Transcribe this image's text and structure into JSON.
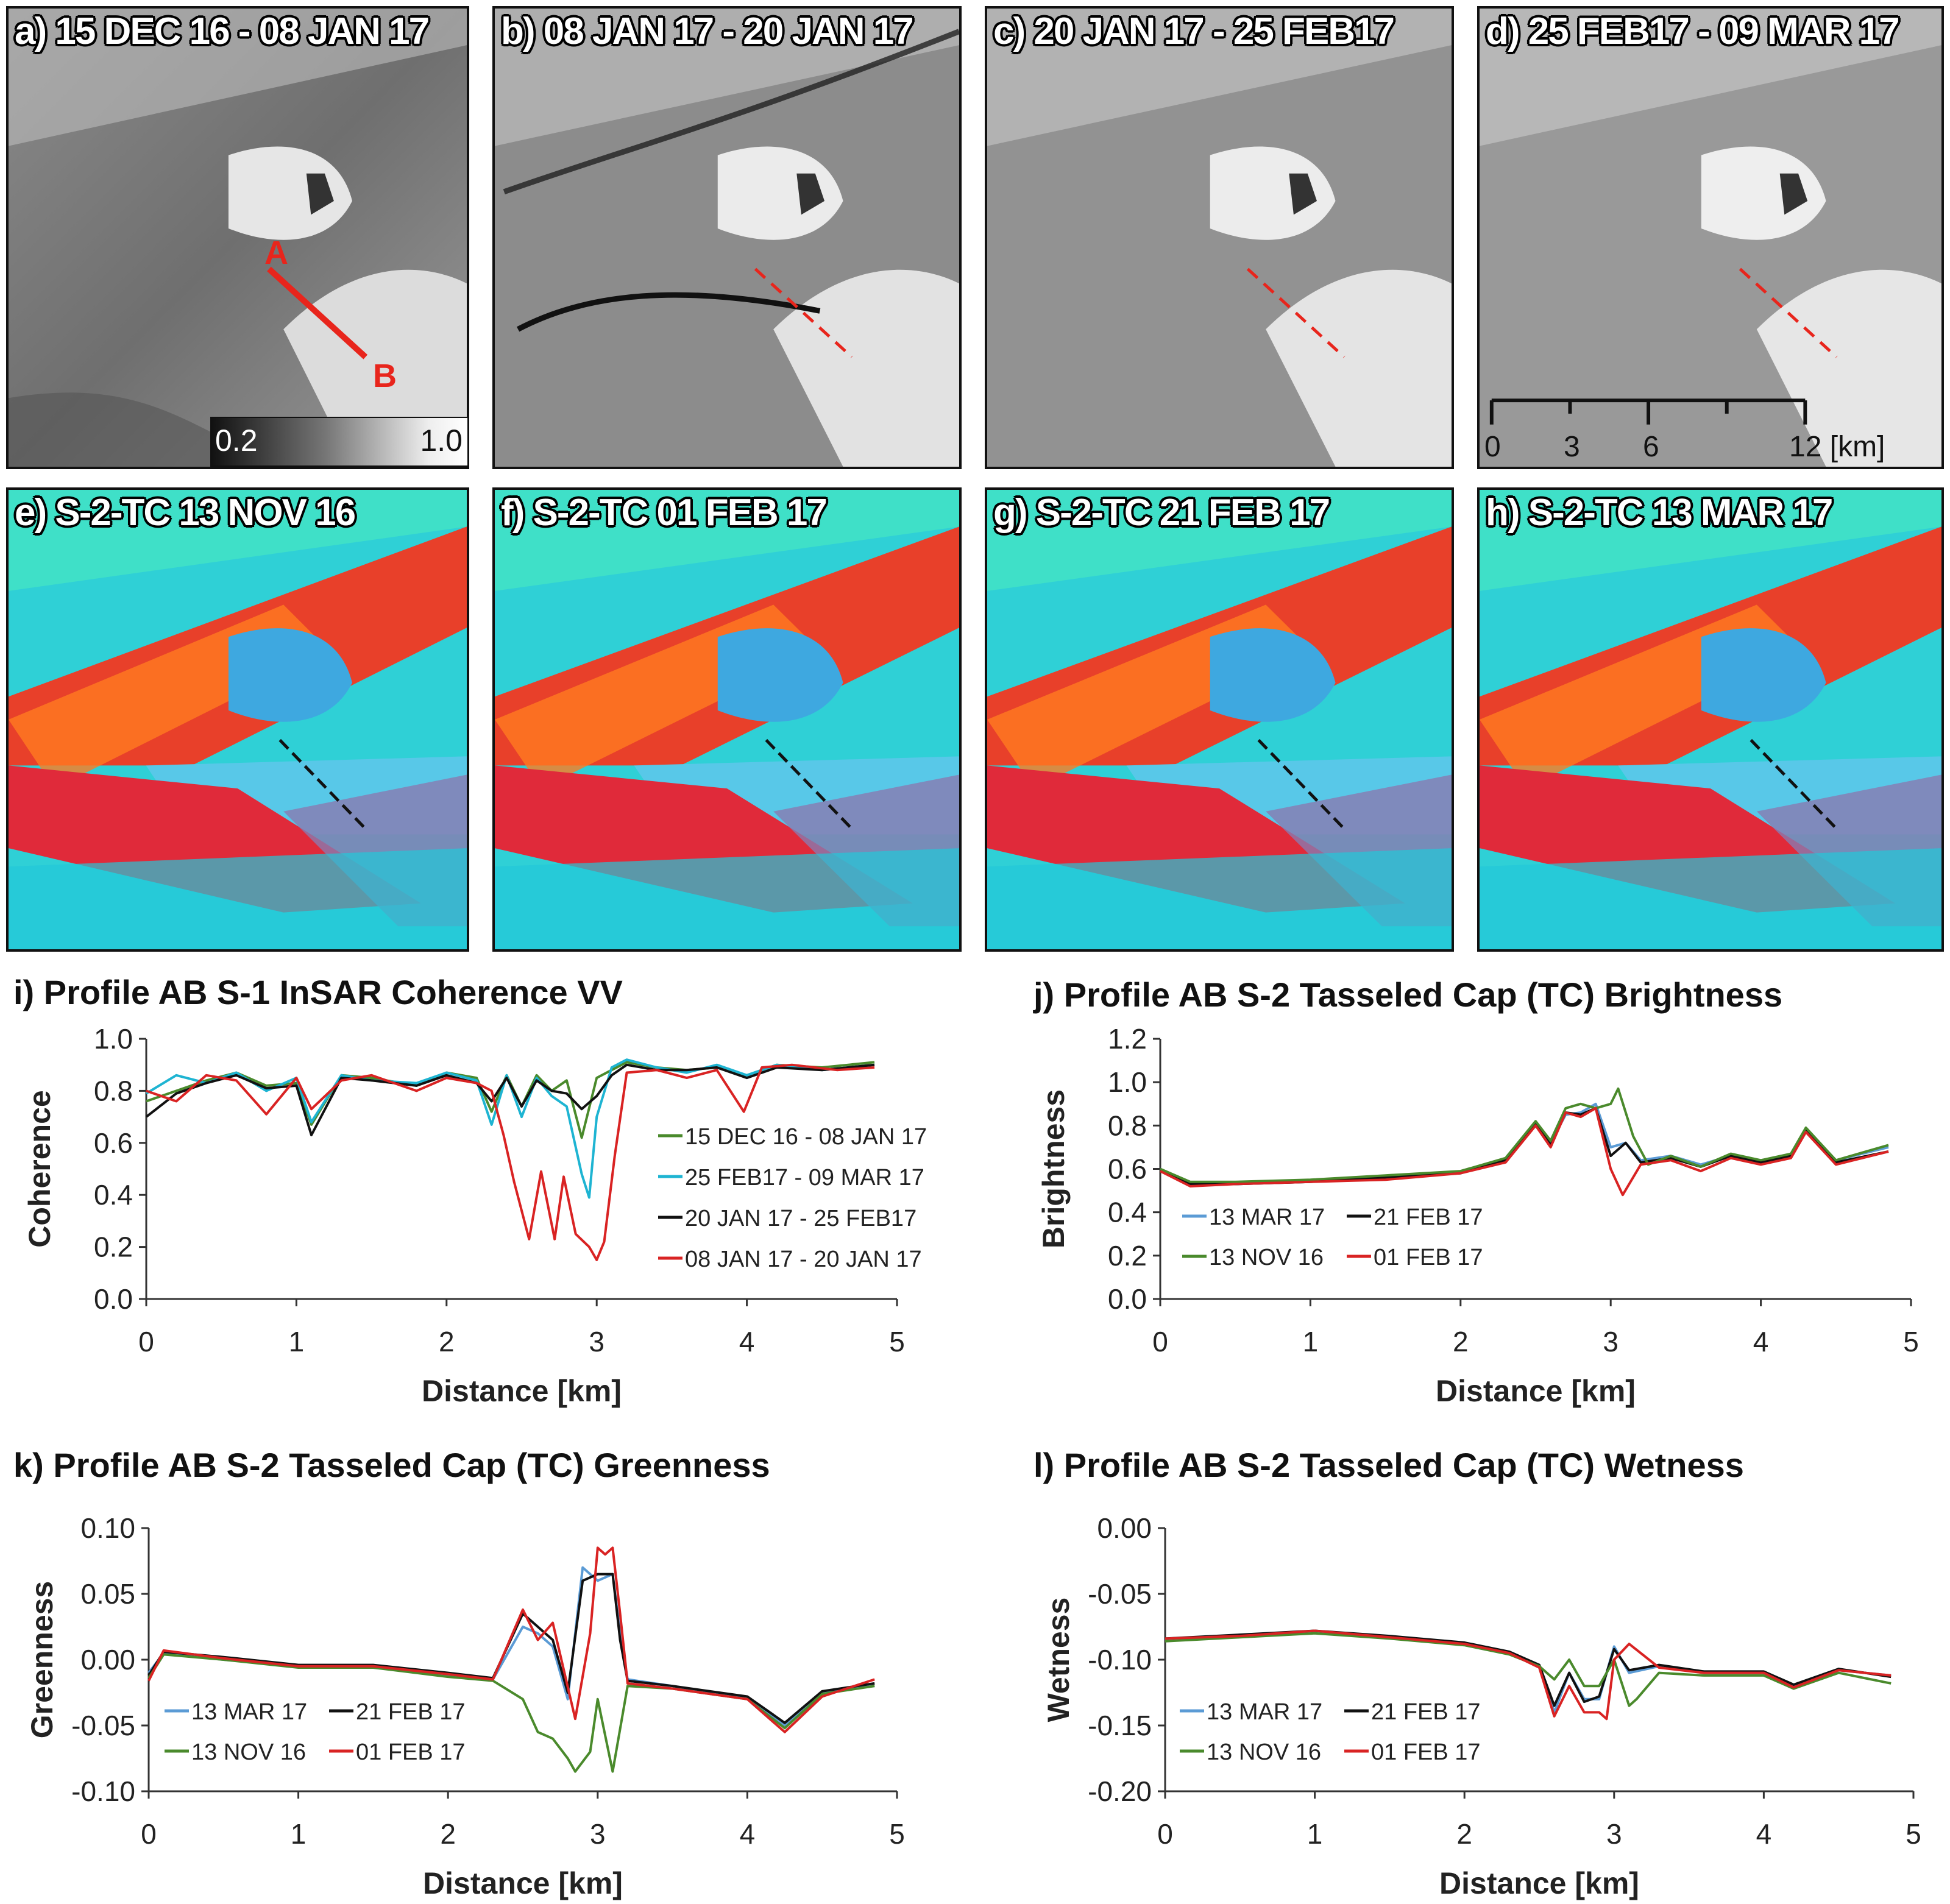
{
  "panels": {
    "a": {
      "label": "a) 15 DEC 16 - 08 JAN 17"
    },
    "b": {
      "label": "b) 08 JAN 17 - 20 JAN 17"
    },
    "c": {
      "label": "c) 20 JAN 17 - 25 FEB17"
    },
    "d": {
      "label": "d) 25 FEB17 - 09 MAR 17"
    },
    "e": {
      "label": "e) S-2-TC 13 NOV 16"
    },
    "f": {
      "label": "f) S-2-TC 01 FEB 17"
    },
    "g": {
      "label": "g) S-2-TC 21 FEB 17"
    },
    "h": {
      "label": "h) S-2-TC 13 MAR 17"
    }
  },
  "profile_points": {
    "start": "A",
    "end": "B"
  },
  "colorbar": {
    "min": "0.2",
    "max": "1.0"
  },
  "scale_bar": {
    "ticks": [
      "0",
      "3",
      "6",
      "12 [km]"
    ]
  },
  "colors": {
    "green": "#4a8a2c",
    "cyan": "#1eb4d2",
    "black": "#111111",
    "red": "#d92323",
    "blue": "#5b9bd5",
    "profile": "#e8251c"
  },
  "chart_data": [
    {
      "id": "i",
      "type": "line",
      "title": "i) Profile AB S-1 InSAR Coherence VV",
      "xlabel": "Distance [km]",
      "ylabel": "Coherence",
      "xlim": [
        0,
        5
      ],
      "ylim": [
        0,
        1.0
      ],
      "xticks": [
        0,
        1,
        2,
        3,
        4,
        5
      ],
      "yticks": [
        0.0,
        0.2,
        0.4,
        0.6,
        0.8,
        1.0
      ],
      "ytick_labels": [
        "0.0",
        "0.2",
        "0.4",
        "0.6",
        "0.8",
        "1.0"
      ],
      "legend_position": "center-right",
      "series": [
        {
          "name": "15 DEC 16 - 08 JAN 17",
          "color": "#4a8a2c",
          "x": [
            0,
            0.2,
            0.4,
            0.6,
            0.8,
            1.0,
            1.1,
            1.3,
            1.5,
            1.8,
            2.0,
            2.2,
            2.3,
            2.4,
            2.5,
            2.6,
            2.7,
            2.8,
            2.9,
            3.0,
            3.1,
            3.2,
            3.4,
            3.6,
            3.8,
            4.0,
            4.2,
            4.5,
            4.85
          ],
          "y": [
            0.76,
            0.8,
            0.84,
            0.87,
            0.82,
            0.83,
            0.67,
            0.86,
            0.85,
            0.82,
            0.87,
            0.85,
            0.72,
            0.86,
            0.74,
            0.86,
            0.8,
            0.84,
            0.62,
            0.85,
            0.88,
            0.91,
            0.89,
            0.88,
            0.89,
            0.86,
            0.9,
            0.89,
            0.91
          ]
        },
        {
          "name": "25 FEB17 - 09 MAR 17",
          "color": "#1eb4d2",
          "x": [
            0,
            0.2,
            0.4,
            0.6,
            0.8,
            1.0,
            1.1,
            1.3,
            1.5,
            1.8,
            2.0,
            2.2,
            2.3,
            2.4,
            2.5,
            2.6,
            2.7,
            2.8,
            2.9,
            2.95,
            3.0,
            3.1,
            3.2,
            3.4,
            3.6,
            3.8,
            4.0,
            4.2,
            4.5,
            4.85
          ],
          "y": [
            0.79,
            0.86,
            0.83,
            0.87,
            0.8,
            0.85,
            0.68,
            0.86,
            0.84,
            0.83,
            0.87,
            0.84,
            0.67,
            0.86,
            0.7,
            0.85,
            0.78,
            0.74,
            0.48,
            0.39,
            0.7,
            0.89,
            0.92,
            0.89,
            0.87,
            0.9,
            0.86,
            0.9,
            0.88,
            0.9
          ]
        },
        {
          "name": "20 JAN 17 - 25 FEB17",
          "color": "#111111",
          "x": [
            0,
            0.2,
            0.4,
            0.6,
            0.8,
            1.0,
            1.1,
            1.3,
            1.5,
            1.8,
            2.0,
            2.2,
            2.3,
            2.4,
            2.5,
            2.6,
            2.7,
            2.8,
            2.9,
            3.0,
            3.1,
            3.2,
            3.4,
            3.6,
            3.8,
            4.0,
            4.2,
            4.5,
            4.85
          ],
          "y": [
            0.7,
            0.79,
            0.83,
            0.86,
            0.81,
            0.82,
            0.63,
            0.85,
            0.84,
            0.82,
            0.86,
            0.83,
            0.76,
            0.85,
            0.74,
            0.84,
            0.8,
            0.79,
            0.73,
            0.78,
            0.86,
            0.9,
            0.88,
            0.88,
            0.89,
            0.85,
            0.89,
            0.88,
            0.9
          ]
        },
        {
          "name": "08 JAN 17 - 20 JAN 17",
          "color": "#d92323",
          "x": [
            0,
            0.2,
            0.4,
            0.6,
            0.8,
            1.0,
            1.1,
            1.3,
            1.5,
            1.8,
            2.0,
            2.2,
            2.3,
            2.38,
            2.45,
            2.55,
            2.63,
            2.72,
            2.78,
            2.86,
            2.95,
            3.0,
            3.05,
            3.12,
            3.2,
            3.4,
            3.6,
            3.8,
            3.98,
            4.1,
            4.3,
            4.6,
            4.85
          ],
          "y": [
            0.8,
            0.76,
            0.86,
            0.84,
            0.71,
            0.85,
            0.73,
            0.84,
            0.86,
            0.8,
            0.85,
            0.83,
            0.8,
            0.63,
            0.45,
            0.23,
            0.49,
            0.23,
            0.47,
            0.25,
            0.2,
            0.15,
            0.22,
            0.55,
            0.87,
            0.88,
            0.85,
            0.88,
            0.72,
            0.89,
            0.9,
            0.88,
            0.89
          ]
        }
      ]
    },
    {
      "id": "j",
      "type": "line",
      "title": "j) Profile AB S-2 Tasseled Cap (TC) Brightness",
      "xlabel": "Distance [km]",
      "ylabel": "Brightness",
      "xlim": [
        0,
        5
      ],
      "ylim": [
        0,
        1.2
      ],
      "xticks": [
        0,
        1,
        2,
        3,
        4,
        5
      ],
      "yticks": [
        0.0,
        0.2,
        0.4,
        0.6,
        0.8,
        1.0,
        1.2
      ],
      "ytick_labels": [
        "0.0",
        "0.2",
        "0.4",
        "0.6",
        "0.8",
        "1.0",
        "1.2"
      ],
      "legend_position": "bottom-left",
      "series": [
        {
          "name": "13 MAR 17",
          "color": "#5b9bd5",
          "x": [
            0,
            0.2,
            0.5,
            1.0,
            1.5,
            2.0,
            2.3,
            2.5,
            2.6,
            2.7,
            2.8,
            2.9,
            3.0,
            3.1,
            3.2,
            3.4,
            3.6,
            3.8,
            4.0,
            4.2,
            4.3,
            4.5,
            4.85
          ],
          "y": [
            0.6,
            0.53,
            0.53,
            0.54,
            0.56,
            0.58,
            0.64,
            0.8,
            0.72,
            0.85,
            0.86,
            0.9,
            0.7,
            0.72,
            0.64,
            0.66,
            0.62,
            0.66,
            0.64,
            0.66,
            0.78,
            0.64,
            0.7
          ]
        },
        {
          "name": "21 FEB 17",
          "color": "#111111",
          "x": [
            0,
            0.2,
            0.5,
            1.0,
            1.5,
            2.0,
            2.3,
            2.5,
            2.6,
            2.7,
            2.8,
            2.9,
            3.0,
            3.1,
            3.2,
            3.4,
            3.6,
            3.8,
            4.0,
            4.2,
            4.3,
            4.5,
            4.85
          ],
          "y": [
            0.59,
            0.53,
            0.53,
            0.54,
            0.56,
            0.58,
            0.64,
            0.81,
            0.71,
            0.86,
            0.85,
            0.88,
            0.66,
            0.72,
            0.63,
            0.65,
            0.61,
            0.66,
            0.63,
            0.66,
            0.78,
            0.63,
            0.68
          ]
        },
        {
          "name": "13 NOV 16",
          "color": "#4a8a2c",
          "x": [
            0,
            0.2,
            0.5,
            1.0,
            1.5,
            2.0,
            2.3,
            2.5,
            2.6,
            2.7,
            2.8,
            2.9,
            3.0,
            3.05,
            3.15,
            3.25,
            3.4,
            3.6,
            3.8,
            4.0,
            4.2,
            4.3,
            4.5,
            4.85
          ],
          "y": [
            0.6,
            0.54,
            0.54,
            0.55,
            0.57,
            0.59,
            0.65,
            0.82,
            0.73,
            0.88,
            0.9,
            0.88,
            0.9,
            0.97,
            0.75,
            0.62,
            0.66,
            0.61,
            0.67,
            0.64,
            0.67,
            0.79,
            0.64,
            0.71
          ]
        },
        {
          "name": "01 FEB 17",
          "color": "#d92323",
          "x": [
            0,
            0.2,
            0.5,
            1.0,
            1.5,
            2.0,
            2.3,
            2.5,
            2.6,
            2.7,
            2.8,
            2.9,
            3.0,
            3.08,
            3.2,
            3.4,
            3.6,
            3.8,
            4.0,
            4.2,
            4.3,
            4.5,
            4.85
          ],
          "y": [
            0.59,
            0.52,
            0.53,
            0.54,
            0.55,
            0.58,
            0.63,
            0.8,
            0.7,
            0.86,
            0.84,
            0.88,
            0.6,
            0.48,
            0.62,
            0.64,
            0.59,
            0.65,
            0.62,
            0.65,
            0.77,
            0.62,
            0.68
          ]
        }
      ]
    },
    {
      "id": "k",
      "type": "line",
      "title": "k) Profile AB S-2 Tasseled Cap (TC) Greenness",
      "xlabel": "Distance [km]",
      "ylabel": "Greenness",
      "xlim": [
        0,
        5
      ],
      "ylim": [
        -0.1,
        0.1
      ],
      "xticks": [
        0,
        1,
        2,
        3,
        4,
        5
      ],
      "yticks": [
        -0.1,
        -0.05,
        0.0,
        0.05,
        0.1
      ],
      "ytick_labels": [
        "-0.10",
        "-0.05",
        "0.00",
        "0.05",
        "0.10"
      ],
      "legend_position": "bottom-left",
      "series": [
        {
          "name": "13 MAR 17",
          "color": "#5b9bd5",
          "x": [
            0,
            0.1,
            0.5,
            1.0,
            1.5,
            2.0,
            2.3,
            2.5,
            2.6,
            2.7,
            2.8,
            2.9,
            3.0,
            3.1,
            3.15,
            3.2,
            3.5,
            4.0,
            4.25,
            4.5,
            4.85
          ],
          "y": [
            -0.01,
            0.005,
            0.0,
            -0.005,
            -0.005,
            -0.012,
            -0.015,
            0.025,
            0.02,
            0.01,
            -0.03,
            0.07,
            0.06,
            0.065,
            0.02,
            -0.015,
            -0.02,
            -0.03,
            -0.05,
            -0.025,
            -0.02
          ]
        },
        {
          "name": "21 FEB 17",
          "color": "#111111",
          "x": [
            0,
            0.1,
            0.5,
            1.0,
            1.5,
            2.0,
            2.3,
            2.5,
            2.6,
            2.7,
            2.8,
            2.9,
            3.0,
            3.1,
            3.15,
            3.2,
            3.5,
            4.0,
            4.25,
            4.5,
            4.85
          ],
          "y": [
            -0.012,
            0.006,
            0.002,
            -0.004,
            -0.004,
            -0.01,
            -0.014,
            0.035,
            0.025,
            0.015,
            -0.025,
            0.06,
            0.065,
            0.065,
            0.015,
            -0.016,
            -0.02,
            -0.028,
            -0.048,
            -0.024,
            -0.018
          ]
        },
        {
          "name": "13 NOV 16",
          "color": "#4a8a2c",
          "x": [
            0,
            0.1,
            0.5,
            1.0,
            1.5,
            2.0,
            2.3,
            2.5,
            2.6,
            2.7,
            2.8,
            2.85,
            2.95,
            3.0,
            3.1,
            3.2,
            3.5,
            4.0,
            4.25,
            4.5,
            4.85
          ],
          "y": [
            -0.014,
            0.004,
            0.0,
            -0.006,
            -0.006,
            -0.013,
            -0.016,
            -0.03,
            -0.055,
            -0.06,
            -0.075,
            -0.085,
            -0.07,
            -0.03,
            -0.085,
            -0.02,
            -0.022,
            -0.03,
            -0.052,
            -0.026,
            -0.02
          ]
        },
        {
          "name": "01 FEB 17",
          "color": "#d92323",
          "x": [
            0,
            0.1,
            0.5,
            1.0,
            1.5,
            2.0,
            2.3,
            2.5,
            2.6,
            2.7,
            2.85,
            2.95,
            3.0,
            3.05,
            3.1,
            3.15,
            3.2,
            3.5,
            4.0,
            4.25,
            4.5,
            4.85
          ],
          "y": [
            -0.016,
            0.007,
            0.001,
            -0.005,
            -0.005,
            -0.011,
            -0.015,
            0.038,
            0.015,
            0.028,
            -0.045,
            0.02,
            0.085,
            0.08,
            0.085,
            0.035,
            -0.018,
            -0.022,
            -0.03,
            -0.055,
            -0.028,
            -0.015
          ]
        }
      ]
    },
    {
      "id": "l",
      "type": "line",
      "title": "l) Profile AB S-2 Tasseled Cap (TC) Wetness",
      "xlabel": "Distance [km]",
      "ylabel": "Wetness",
      "xlim": [
        0,
        5
      ],
      "ylim": [
        -0.2,
        0.0
      ],
      "xticks": [
        0,
        1,
        2,
        3,
        4,
        5
      ],
      "yticks": [
        -0.2,
        -0.15,
        -0.1,
        -0.05,
        0.0
      ],
      "ytick_labels": [
        "-0.20",
        "-0.15",
        "-0.10",
        "-0.05",
        "0.00"
      ],
      "legend_position": "bottom-left",
      "series": [
        {
          "name": "13 MAR 17",
          "color": "#5b9bd5",
          "x": [
            0,
            0.5,
            1.0,
            1.5,
            2.0,
            2.3,
            2.5,
            2.6,
            2.7,
            2.8,
            2.9,
            3.0,
            3.1,
            3.3,
            3.6,
            4.0,
            4.2,
            4.5,
            4.85
          ],
          "y": [
            -0.085,
            -0.082,
            -0.079,
            -0.083,
            -0.088,
            -0.095,
            -0.105,
            -0.14,
            -0.11,
            -0.13,
            -0.13,
            -0.09,
            -0.11,
            -0.105,
            -0.11,
            -0.11,
            -0.12,
            -0.108,
            -0.112
          ]
        },
        {
          "name": "21 FEB 17",
          "color": "#111111",
          "x": [
            0,
            0.5,
            1.0,
            1.5,
            2.0,
            2.3,
            2.5,
            2.6,
            2.7,
            2.8,
            2.9,
            3.0,
            3.1,
            3.3,
            3.6,
            4.0,
            4.2,
            4.5,
            4.85
          ],
          "y": [
            -0.084,
            -0.081,
            -0.078,
            -0.082,
            -0.087,
            -0.094,
            -0.104,
            -0.135,
            -0.11,
            -0.132,
            -0.128,
            -0.092,
            -0.108,
            -0.104,
            -0.109,
            -0.109,
            -0.119,
            -0.107,
            -0.113
          ]
        },
        {
          "name": "13 NOV 16",
          "color": "#4a8a2c",
          "x": [
            0,
            0.5,
            1.0,
            1.5,
            2.0,
            2.3,
            2.5,
            2.6,
            2.7,
            2.8,
            2.9,
            3.0,
            3.1,
            3.15,
            3.3,
            3.6,
            4.0,
            4.2,
            4.5,
            4.85
          ],
          "y": [
            -0.086,
            -0.083,
            -0.08,
            -0.084,
            -0.089,
            -0.096,
            -0.105,
            -0.115,
            -0.1,
            -0.12,
            -0.12,
            -0.1,
            -0.135,
            -0.13,
            -0.11,
            -0.112,
            -0.112,
            -0.122,
            -0.11,
            -0.118
          ]
        },
        {
          "name": "01 FEB 17",
          "color": "#d92323",
          "x": [
            0,
            0.5,
            1.0,
            1.5,
            2.0,
            2.3,
            2.5,
            2.6,
            2.7,
            2.8,
            2.9,
            2.95,
            3.0,
            3.1,
            3.3,
            3.6,
            4.0,
            4.2,
            4.5,
            4.85
          ],
          "y": [
            -0.084,
            -0.082,
            -0.078,
            -0.083,
            -0.088,
            -0.095,
            -0.106,
            -0.143,
            -0.12,
            -0.14,
            -0.14,
            -0.145,
            -0.1,
            -0.088,
            -0.106,
            -0.11,
            -0.11,
            -0.121,
            -0.108,
            -0.112
          ]
        }
      ]
    }
  ]
}
